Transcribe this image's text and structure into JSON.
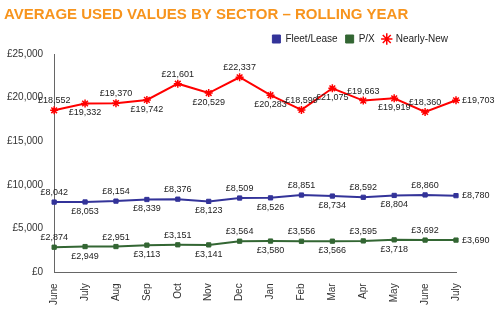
{
  "chart_data": {
    "type": "line",
    "title": "AVERAGE USED VALUES BY SECTOR – ROLLING YEAR",
    "categories": [
      "June",
      "July",
      "Aug",
      "Sep",
      "Oct",
      "Nov",
      "Dec",
      "Jan",
      "Feb",
      "Mar",
      "Apr",
      "May",
      "June",
      "July"
    ],
    "series": [
      {
        "name": "Fleet/Lease",
        "color": "#333399",
        "marker": "square",
        "values": [
          8042,
          8053,
          8154,
          8339,
          8376,
          8123,
          8509,
          8526,
          8851,
          8734,
          8592,
          8804,
          8860,
          8780
        ],
        "value_labels": [
          "£8,042",
          "£8,053",
          "£8,154",
          "£8,339",
          "£8,376",
          "£8,123",
          "£8,509",
          "£8,526",
          "£8,851",
          "£8,734",
          "£8,592",
          "£8,804",
          "£8,860",
          "£8,780"
        ]
      },
      {
        "name": "P/X",
        "color": "#336633",
        "marker": "square",
        "values": [
          2874,
          2949,
          2951,
          3113,
          3151,
          3141,
          3564,
          3580,
          3556,
          3566,
          3595,
          3718,
          3692,
          3690
        ],
        "value_labels": [
          "£2,874",
          "£2,949",
          "£2,951",
          "£3,113",
          "£3,151",
          "£3,141",
          "£3,564",
          "£3,580",
          "£3,556",
          "£3,566",
          "£3,595",
          "£3,718",
          "£3,692",
          "£3,690"
        ]
      },
      {
        "name": "Nearly-New",
        "color": "#ff0000",
        "marker": "star",
        "values": [
          18552,
          19332,
          19370,
          19742,
          21601,
          20529,
          22337,
          20283,
          18599,
          21075,
          19663,
          19919,
          18360,
          19703
        ],
        "value_labels": [
          "£18,552",
          "£19,332",
          "£19,370",
          "£19,742",
          "£21,601",
          "£20,529",
          "£22,337",
          "£20,283",
          "£18,599",
          "£21,075",
          "£19,663",
          "£19,919",
          "£18,360",
          "£19,703"
        ]
      }
    ],
    "ylim": [
      0,
      25000
    ],
    "yticks": [
      {
        "value": 0,
        "label": "£0"
      },
      {
        "value": 5000,
        "label": "£5,000"
      },
      {
        "value": 10000,
        "label": "£10,000"
      },
      {
        "value": 15000,
        "label": "£15,000"
      },
      {
        "value": 20000,
        "label": "£20,000"
      },
      {
        "value": 25000,
        "label": "£25,000"
      }
    ],
    "grid": false,
    "legend": "upper right",
    "data_labels": true
  }
}
